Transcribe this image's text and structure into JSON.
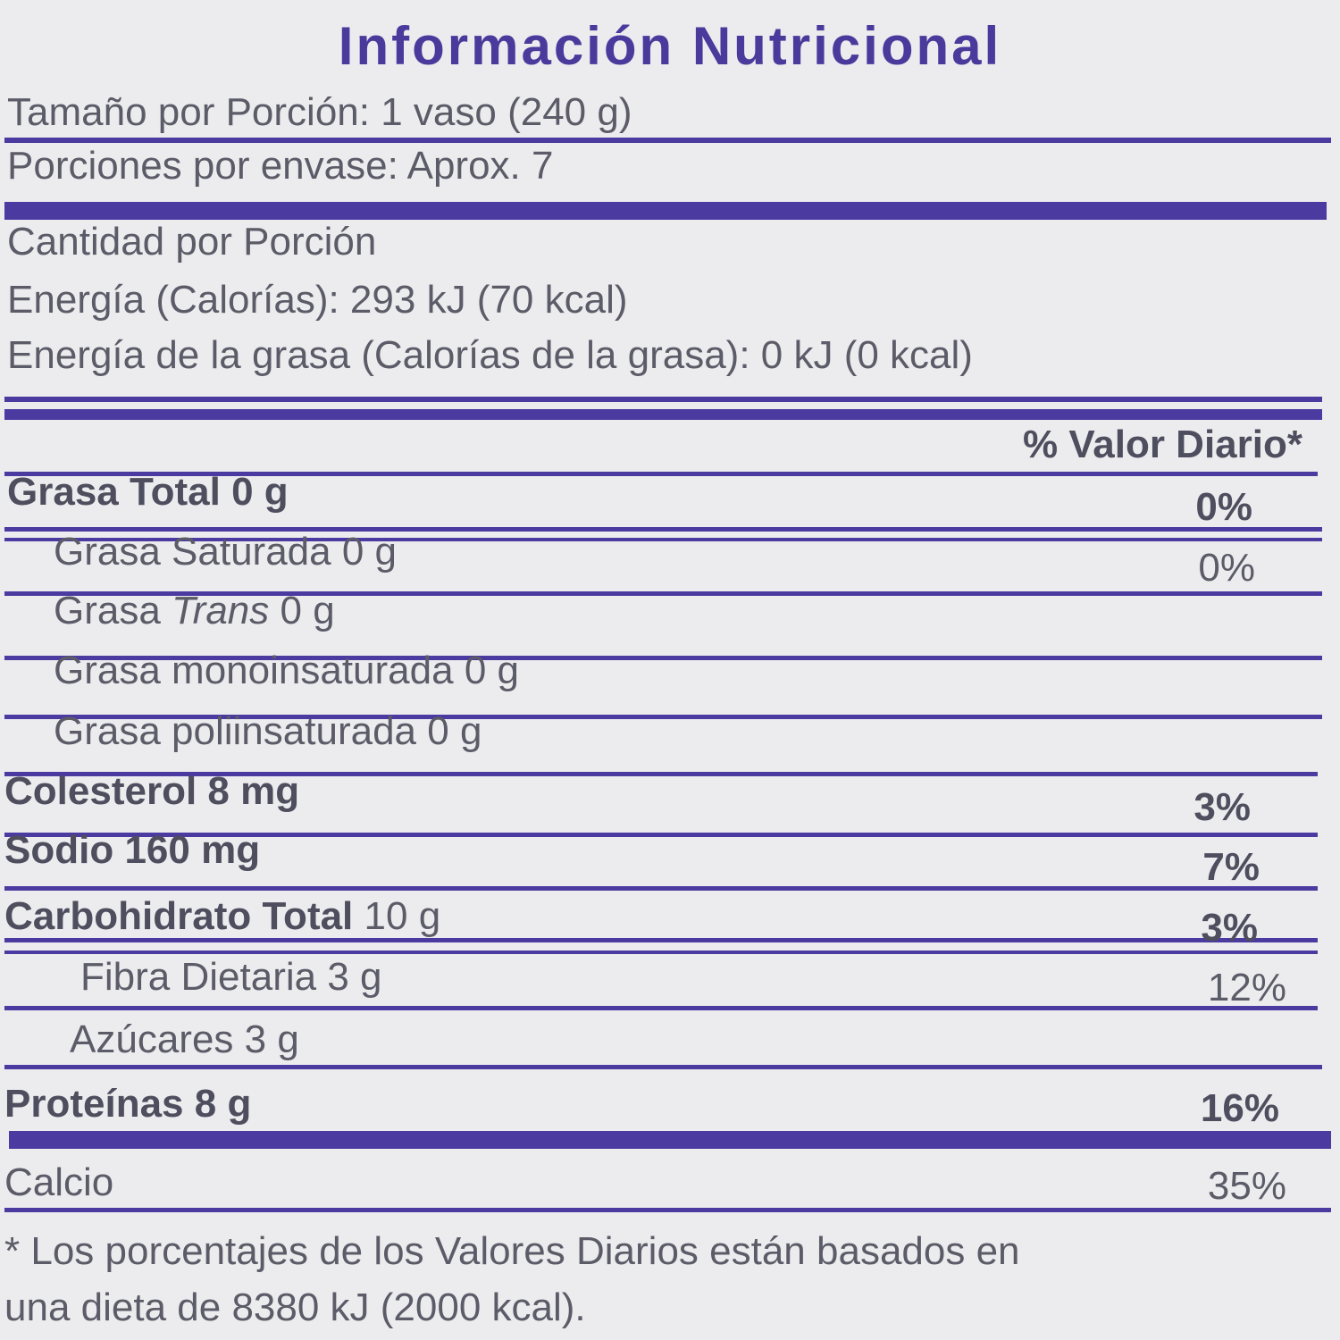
{
  "title": "Información Nutricional",
  "serving_size": "Tamaño por Porción: 1 vaso (240 g)",
  "servings": "Porciones por envase: Aprox. 7",
  "amount_header": "Cantidad por Porción",
  "energy": "Energía (Calorías): 293 kJ (70 kcal)",
  "fat_energy": "Energía de la grasa (Calorías de la grasa): 0 kJ (0 kcal)",
  "dv_header": "% Valor Diario*",
  "rows": [
    {
      "name": "Grasa Total",
      "amount": "0 g",
      "dv": "0%"
    },
    {
      "name": "Grasa Saturada",
      "amount": "0 g",
      "dv": "0%"
    },
    {
      "name": "Grasa",
      "name_italic": "Trans",
      "amount": "0 g"
    },
    {
      "name": "Grasa monoinsaturada",
      "amount": "0 g"
    },
    {
      "name": "Grasa poliinsaturada",
      "amount": "0 g"
    },
    {
      "name": "Colesterol",
      "amount": "8 mg",
      "dv": "3%"
    },
    {
      "name": "Sodio",
      "amount": "160 mg",
      "dv": "7%"
    },
    {
      "name": "Carbohidrato Total",
      "amount": "10 g",
      "dv": "3%"
    },
    {
      "name": "Fibra Dietaria",
      "amount": "3 g",
      "dv": "12%"
    },
    {
      "name": "Azúcares",
      "amount": "3 g"
    },
    {
      "name": "Proteínas",
      "amount": "8 g",
      "dv": "16%"
    }
  ],
  "calcium": {
    "name": "Calcio",
    "dv": "35%"
  },
  "footnote": [
    "* Los porcentajes de los Valores Diarios están basados en",
    "una dieta de 8380 kJ (2000 kcal)."
  ]
}
